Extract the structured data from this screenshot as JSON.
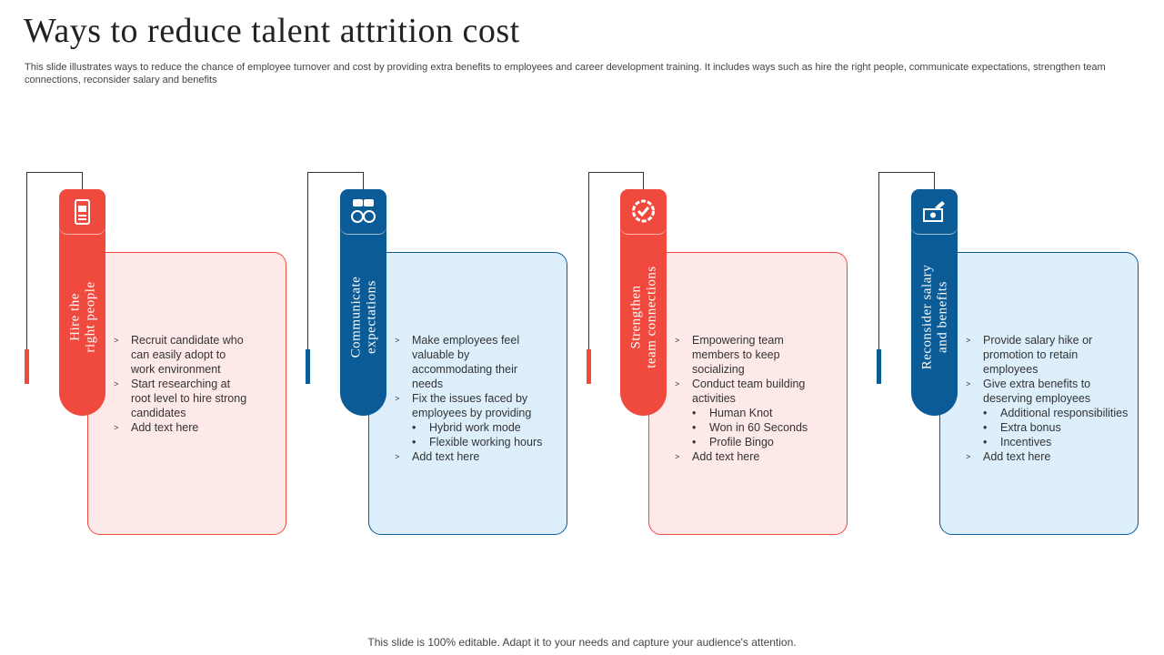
{
  "header": {
    "title": "Ways to reduce talent attrition cost",
    "description": "This slide illustrates ways to reduce the chance of employee turnover and cost by providing extra  benefits to employees and career development training. It includes ways such as hire the right people, communicate expectations, strengthen team connections, reconsider salary and benefits"
  },
  "cards": [
    {
      "heading": [
        "Hire the",
        "right people"
      ],
      "items": [
        {
          "text": "Recruit candidate who can easily adopt to work environment",
          "subitems": []
        },
        {
          "text": "Start researching at root level to hire strong candidates",
          "subitems": []
        },
        {
          "text": "Add text here",
          "subitems": []
        }
      ]
    },
    {
      "heading": [
        "Communicate",
        "expectations"
      ],
      "items": [
        {
          "text": "Make employees feel valuable  by accommodating their needs",
          "subitems": []
        },
        {
          "text": "Fix the issues faced by employees by providing",
          "subitems": [
            "Hybrid work mode",
            "Flexible working hours"
          ]
        },
        {
          "text": "Add text here",
          "subitems": []
        }
      ]
    },
    {
      "heading": [
        "Strengthen",
        "team connections"
      ],
      "items": [
        {
          "text": "Empowering team members to keep socializing",
          "subitems": []
        },
        {
          "text": "Conduct team building activities",
          "subitems": [
            "Human Knot",
            "Won in 60 Seconds",
            "Profile Bingo"
          ]
        },
        {
          "text": "Add text here",
          "subitems": []
        }
      ]
    },
    {
      "heading": [
        "Reconsider salary",
        "and benefits"
      ],
      "items": [
        {
          "text": "Provide  salary hike or promotion to retain employees",
          "subitems": []
        },
        {
          "text": "Give extra benefits to deserving employees",
          "subitems": [
            "Additional responsibilities",
            "Extra bonus",
            "Incentives"
          ]
        },
        {
          "text": "Add text here",
          "subitems": []
        }
      ]
    }
  ],
  "footer": "This slide is 100% editable. Adapt it to your needs and capture your audience's attention."
}
